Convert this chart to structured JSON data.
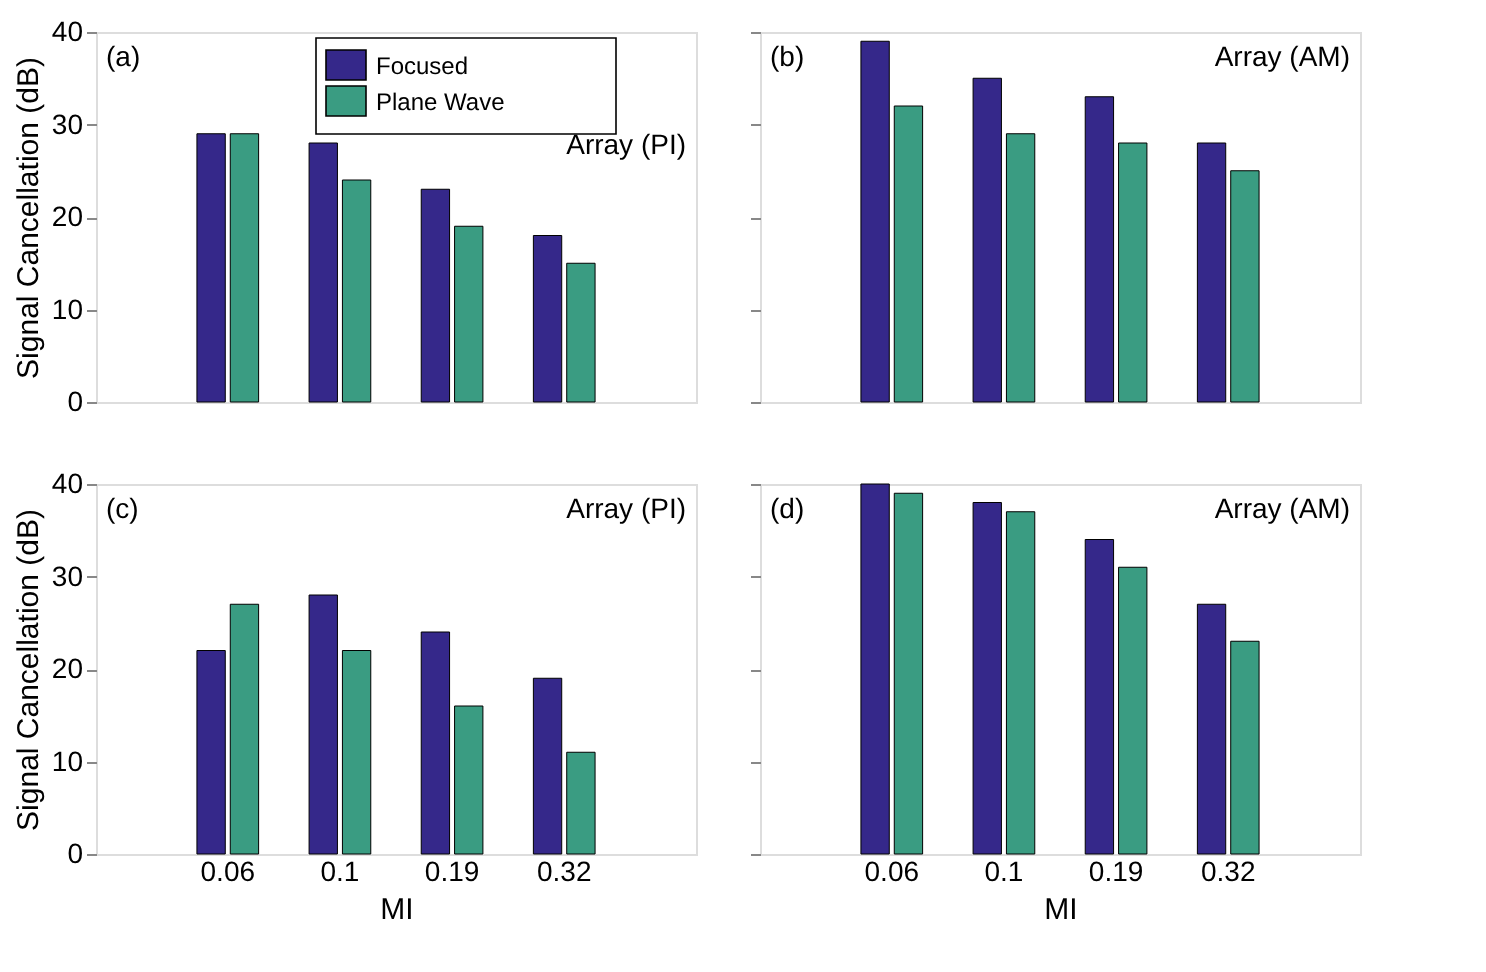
{
  "chart_data": [
    {
      "type": "bar",
      "categories": [
        "0.06",
        "0.1",
        "0.19",
        "0.32"
      ],
      "ylabel": "Signal Cancellation (dB)",
      "ylim": [
        0,
        40
      ],
      "yticks": [
        0,
        10,
        20,
        30,
        40
      ],
      "annotations": [
        "(a)",
        "Array (PI)"
      ],
      "legend": "top right",
      "tick_labels": "y",
      "series": [
        {
          "name": "Focused",
          "color": "#35288a",
          "values": [
            29,
            28,
            23,
            18
          ]
        },
        {
          "name": "Plane Wave",
          "color": "#3a9c82",
          "values": [
            29,
            24,
            19,
            15
          ]
        }
      ]
    },
    {
      "type": "bar",
      "categories": [
        "0.06",
        "0.1",
        "0.19",
        "0.32"
      ],
      "ylim": [
        0,
        40
      ],
      "yticks": [
        0,
        10,
        20,
        30,
        40
      ],
      "annotations": [
        "(b)",
        "Array (AM)"
      ],
      "tick_labels": false,
      "series": [
        {
          "color": "#35288a",
          "values": [
            39,
            35,
            33,
            28
          ]
        },
        {
          "color": "#3a9c82",
          "values": [
            32,
            29,
            28,
            25
          ]
        }
      ]
    },
    {
      "type": "bar",
      "categories": [
        "0.06",
        "0.1",
        "0.19",
        "0.32"
      ],
      "xlabel": "MI",
      "ylabel": "Signal Cancellation (dB)",
      "ylim": [
        0,
        40
      ],
      "yticks": [
        0,
        10,
        20,
        30,
        40
      ],
      "annotations": [
        "(c)",
        "Array (PI)"
      ],
      "series": [
        {
          "color": "#35288a",
          "values": [
            22,
            28,
            24,
            19
          ]
        },
        {
          "color": "#3a9c82",
          "values": [
            27,
            22,
            16,
            11
          ]
        }
      ]
    },
    {
      "type": "bar",
      "categories": [
        "0.06",
        "0.1",
        "0.19",
        "0.32"
      ],
      "xlabel": "MI",
      "ylim": [
        0,
        40
      ],
      "yticks": [
        0,
        10,
        20,
        30,
        40
      ],
      "annotations": [
        "(d)",
        "Array (AM)"
      ],
      "tick_labels": "x",
      "series": [
        {
          "color": "#35288a",
          "values": [
            40,
            38,
            34,
            27
          ]
        },
        {
          "color": "#3a9c82",
          "values": [
            39,
            37,
            31,
            23
          ]
        }
      ]
    }
  ]
}
